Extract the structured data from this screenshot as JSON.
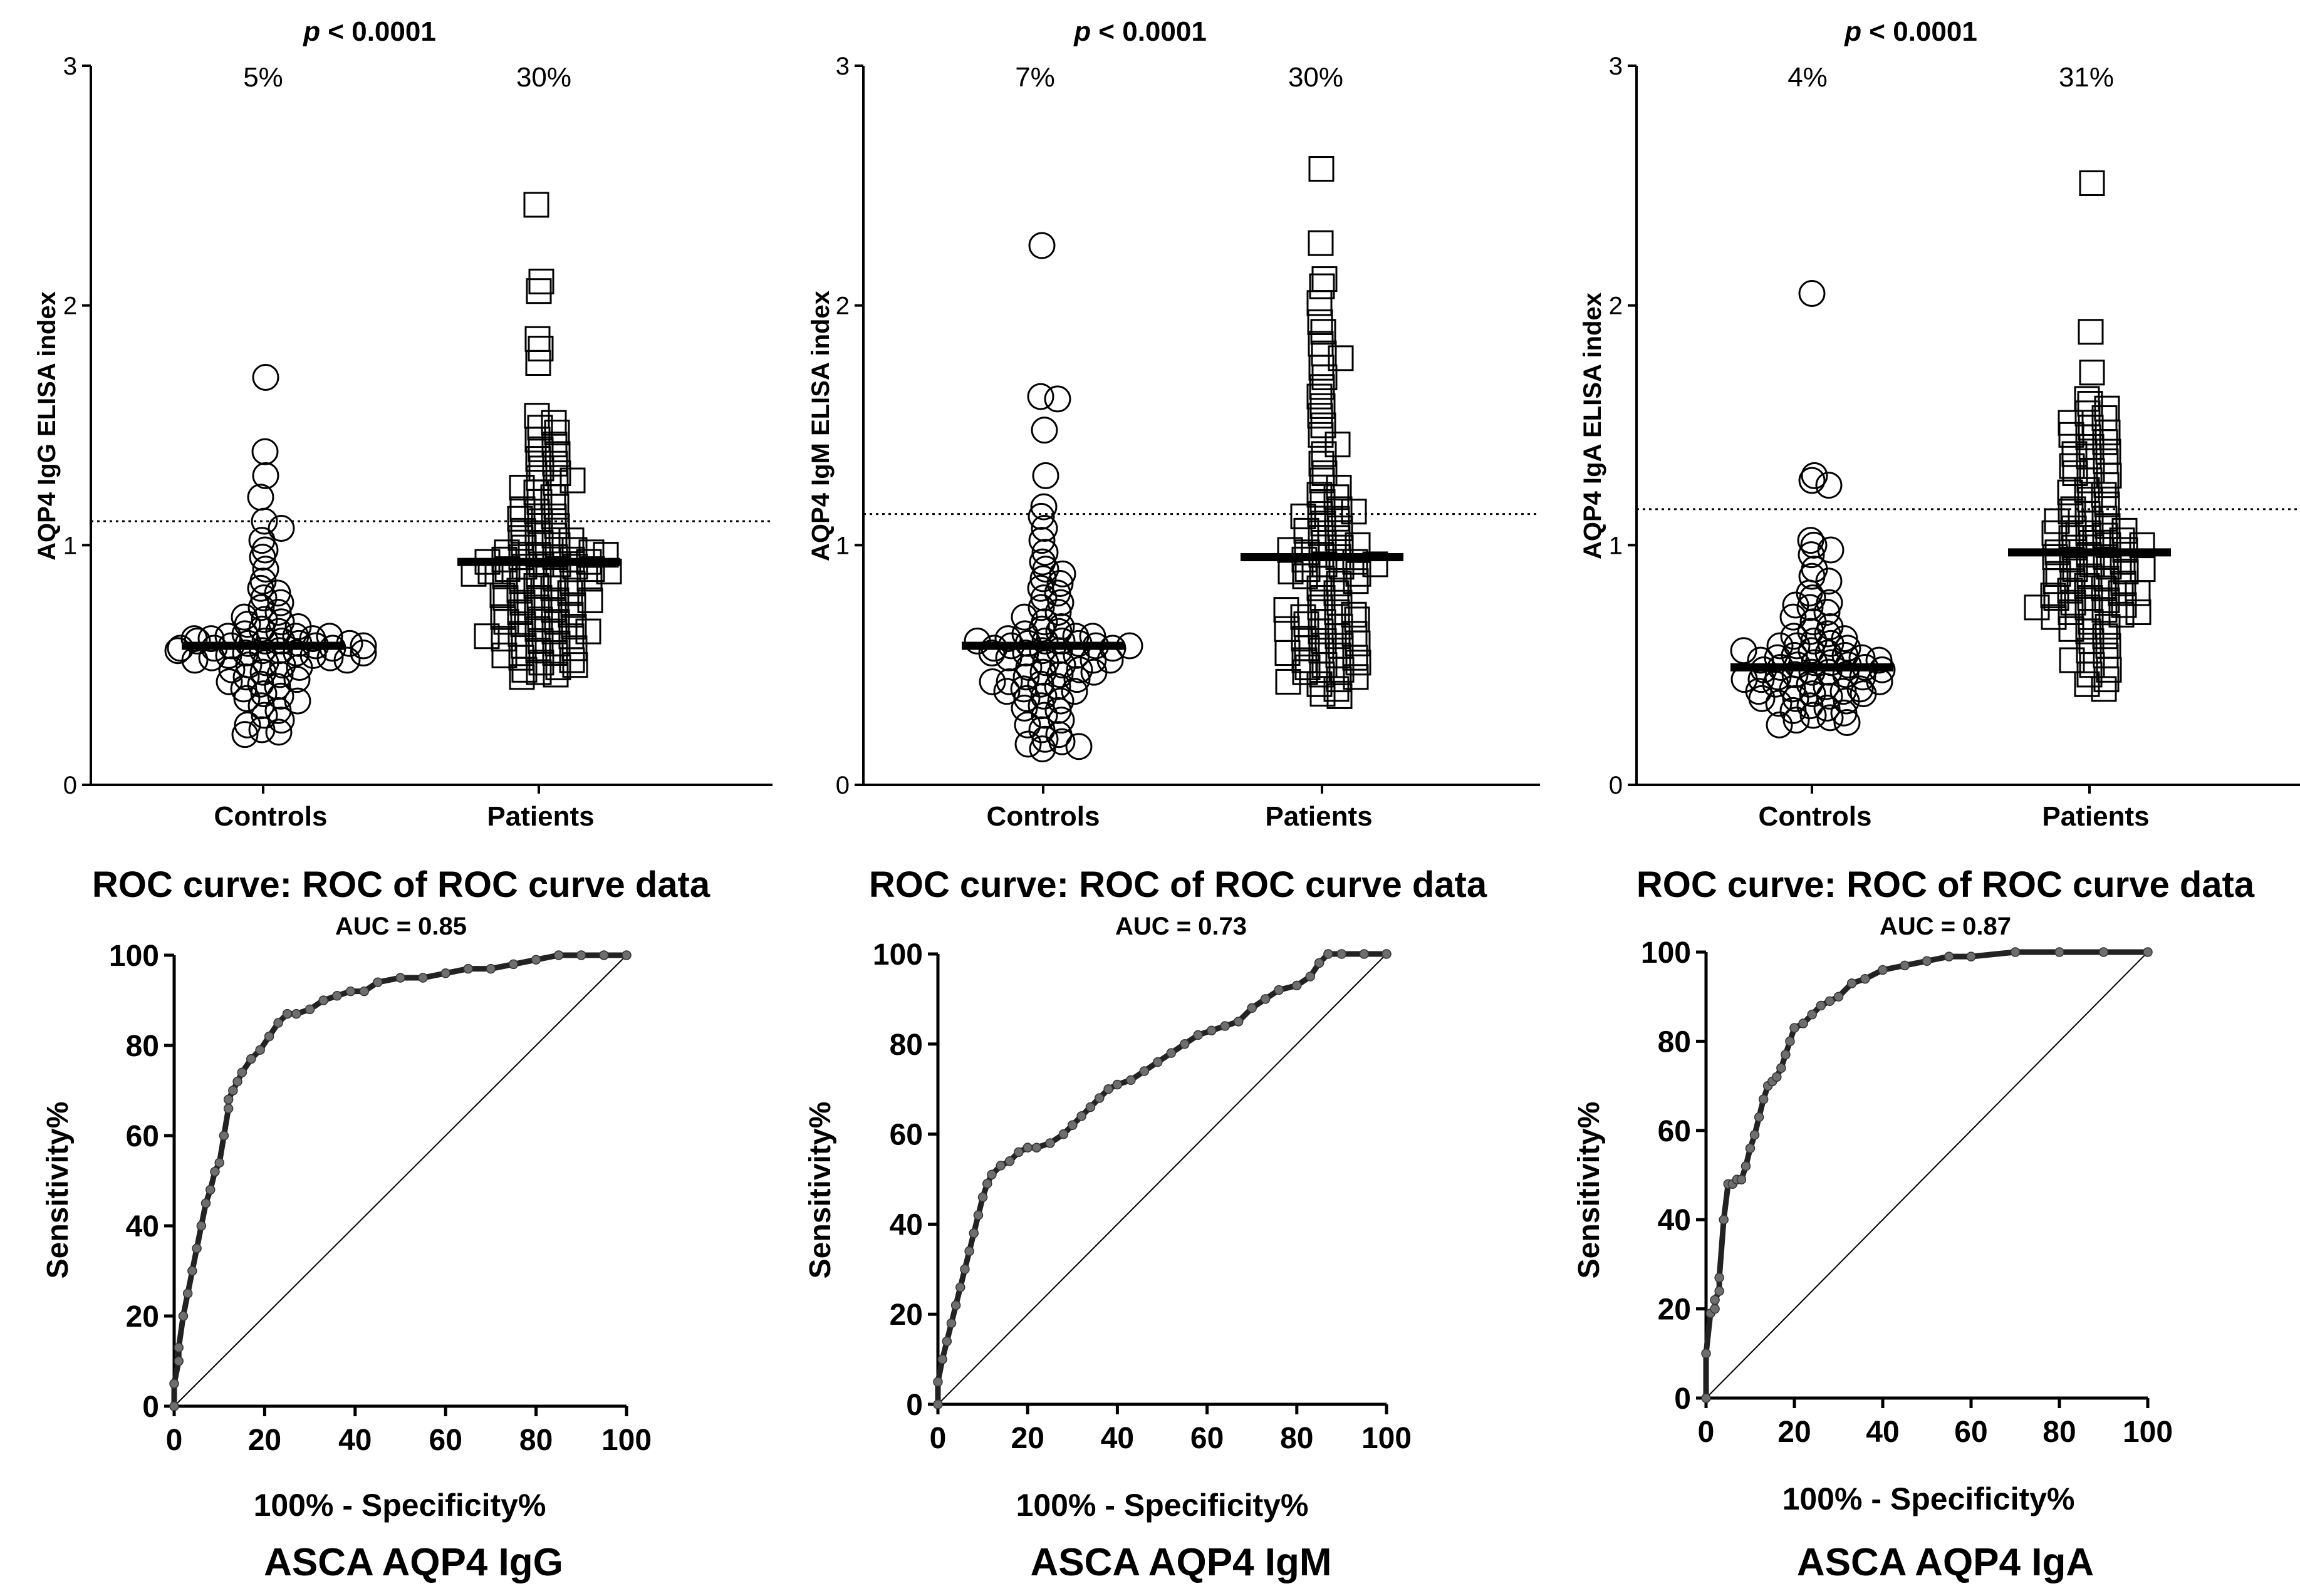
{
  "figure": {
    "colors": {
      "ink": "#000000",
      "roc_marker": "#6e6e6e",
      "background": "#ffffff"
    }
  },
  "chart_data": [
    {
      "type": "scatter",
      "id": "dot-igg",
      "title": "p < 0.0001",
      "title_italic_part": "p",
      "title_rest": " < 0.0001",
      "ylabel": "AQP4 IgG ELISA index",
      "ylim": [
        0,
        3
      ],
      "yticks": [
        0,
        1,
        2,
        3
      ],
      "categories": [
        "Controls",
        "Patients"
      ],
      "percent_labels": [
        "5%",
        "30%"
      ],
      "cutoff": 1.1,
      "medians": [
        0.58,
        0.93
      ],
      "series": [
        {
          "name": "Controls",
          "marker": "circle",
          "values": [
            1.7,
            1.39,
            1.29,
            1.2,
            1.1,
            1.07,
            1.02,
            0.98,
            0.95,
            0.9,
            0.85,
            0.82,
            0.8,
            0.78,
            0.76,
            0.74,
            0.72,
            0.7,
            0.69,
            0.68,
            0.67,
            0.66,
            0.65,
            0.64,
            0.63,
            0.62,
            0.62,
            0.61,
            0.61,
            0.6,
            0.6,
            0.59,
            0.59,
            0.58,
            0.58,
            0.57,
            0.57,
            0.56,
            0.56,
            0.55,
            0.55,
            0.54,
            0.54,
            0.53,
            0.53,
            0.52,
            0.52,
            0.51,
            0.5,
            0.5,
            0.49,
            0.48,
            0.47,
            0.46,
            0.45,
            0.44,
            0.43,
            0.42,
            0.41,
            0.4,
            0.38,
            0.37,
            0.36,
            0.35,
            0.33,
            0.31,
            0.29,
            0.27,
            0.25,
            0.23,
            0.22,
            0.21,
            0.62,
            0.6,
            0.59,
            0.57,
            0.56,
            0.58,
            0.61,
            0.55
          ]
        },
        {
          "name": "Patients",
          "marker": "square",
          "values": [
            2.42,
            2.1,
            2.06,
            1.86,
            1.82,
            1.76,
            1.54,
            1.51,
            1.49,
            1.47,
            1.44,
            1.42,
            1.4,
            1.38,
            1.36,
            1.34,
            1.32,
            1.3,
            1.28,
            1.26,
            1.24,
            1.22,
            1.2,
            1.18,
            1.16,
            1.14,
            1.12,
            1.1,
            1.08,
            1.06,
            1.05,
            1.04,
            1.03,
            1.02,
            1.01,
            1.0,
            0.99,
            0.98,
            0.97,
            0.96,
            0.95,
            0.95,
            0.94,
            0.94,
            0.93,
            0.93,
            0.92,
            0.92,
            0.91,
            0.91,
            0.9,
            0.9,
            0.89,
            0.89,
            0.88,
            0.87,
            0.86,
            0.85,
            0.84,
            0.83,
            0.82,
            0.81,
            0.8,
            0.79,
            0.78,
            0.77,
            0.76,
            0.75,
            0.74,
            0.73,
            0.72,
            0.71,
            0.7,
            0.69,
            0.68,
            0.67,
            0.66,
            0.65,
            0.64,
            0.63,
            0.62,
            0.61,
            0.6,
            0.59,
            0.58,
            0.57,
            0.56,
            0.55,
            0.53,
            0.51,
            0.49,
            0.47,
            0.46,
            0.45,
            0.48,
            0.5,
            0.52,
            0.54,
            1.27,
            1.15,
            1.11,
            0.97,
            0.96,
            0.87,
            0.86,
            0.78,
            0.77,
            0.68,
            0.64,
            0.62
          ]
        }
      ]
    },
    {
      "type": "scatter",
      "id": "dot-igm",
      "title": "p < 0.0001",
      "title_italic_part": "p",
      "title_rest": " < 0.0001",
      "ylabel": "AQP4 IgM ELISA index",
      "ylim": [
        0,
        3
      ],
      "yticks": [
        0,
        1,
        2,
        3
      ],
      "categories": [
        "Controls",
        "Patients"
      ],
      "percent_labels": [
        "7%",
        "30%"
      ],
      "cutoff": 1.13,
      "medians": [
        0.58,
        0.95
      ],
      "series": [
        {
          "name": "Controls",
          "marker": "circle",
          "values": [
            2.25,
            1.62,
            1.61,
            1.48,
            1.29,
            1.16,
            1.12,
            1.07,
            1.02,
            0.97,
            0.93,
            0.9,
            0.88,
            0.86,
            0.84,
            0.82,
            0.8,
            0.78,
            0.76,
            0.74,
            0.72,
            0.7,
            0.68,
            0.66,
            0.65,
            0.64,
            0.63,
            0.62,
            0.61,
            0.6,
            0.6,
            0.59,
            0.59,
            0.58,
            0.58,
            0.57,
            0.57,
            0.56,
            0.56,
            0.55,
            0.54,
            0.53,
            0.52,
            0.51,
            0.5,
            0.49,
            0.48,
            0.47,
            0.46,
            0.45,
            0.44,
            0.43,
            0.42,
            0.41,
            0.4,
            0.39,
            0.37,
            0.35,
            0.33,
            0.31,
            0.29,
            0.27,
            0.25,
            0.23,
            0.21,
            0.19,
            0.18,
            0.17,
            0.16,
            0.15,
            0.62,
            0.6,
            0.58,
            0.55,
            0.52,
            0.47,
            0.43,
            0.39,
            0.36,
            0.32
          ]
        },
        {
          "name": "Patients",
          "marker": "square",
          "values": [
            2.57,
            2.26,
            2.11,
            2.08,
            2.01,
            1.93,
            1.89,
            1.84,
            1.8,
            1.78,
            1.74,
            1.7,
            1.66,
            1.62,
            1.58,
            1.54,
            1.5,
            1.46,
            1.42,
            1.38,
            1.34,
            1.3,
            1.27,
            1.24,
            1.21,
            1.18,
            1.15,
            1.13,
            1.11,
            1.09,
            1.07,
            1.05,
            1.03,
            1.01,
            0.99,
            0.97,
            0.96,
            0.95,
            0.94,
            0.93,
            0.92,
            0.91,
            0.9,
            0.88,
            0.86,
            0.84,
            0.82,
            0.8,
            0.78,
            0.76,
            0.74,
            0.72,
            0.7,
            0.68,
            0.66,
            0.64,
            0.62,
            0.6,
            0.58,
            0.56,
            0.54,
            0.52,
            0.5,
            0.48,
            0.46,
            0.44,
            0.42,
            0.4,
            0.38,
            0.37,
            0.47,
            0.49,
            0.51,
            0.53,
            0.57,
            0.61,
            0.63,
            0.67,
            0.71,
            1.12,
            1.06,
            1.0,
            0.98,
            0.89,
            0.87,
            0.73,
            0.65,
            0.55,
            0.45,
            0.43,
            1.2,
            1.14,
            0.92,
            0.85,
            0.69,
            0.59
          ]
        }
      ]
    },
    {
      "type": "scatter",
      "id": "dot-iga",
      "title": "p < 0.0001",
      "title_italic_part": "p",
      "title_rest": " < 0.0001",
      "ylabel": "AQP4 IgA ELISA index",
      "ylim": [
        0,
        3
      ],
      "yticks": [
        0,
        1,
        2,
        3
      ],
      "categories": [
        "Controls",
        "Patients"
      ],
      "percent_labels": [
        "4%",
        "31%"
      ],
      "cutoff": 1.15,
      "medians": [
        0.49,
        0.97
      ],
      "series": [
        {
          "name": "Controls",
          "marker": "circle",
          "values": [
            2.05,
            1.29,
            1.27,
            1.25,
            1.02,
            1.0,
            0.98,
            0.96,
            0.9,
            0.87,
            0.85,
            0.8,
            0.78,
            0.76,
            0.75,
            0.74,
            0.72,
            0.7,
            0.68,
            0.66,
            0.64,
            0.63,
            0.62,
            0.61,
            0.6,
            0.59,
            0.58,
            0.57,
            0.56,
            0.55,
            0.54,
            0.54,
            0.53,
            0.53,
            0.52,
            0.52,
            0.51,
            0.51,
            0.5,
            0.5,
            0.49,
            0.49,
            0.48,
            0.48,
            0.47,
            0.47,
            0.46,
            0.46,
            0.45,
            0.45,
            0.44,
            0.43,
            0.42,
            0.41,
            0.4,
            0.39,
            0.38,
            0.37,
            0.36,
            0.35,
            0.34,
            0.33,
            0.32,
            0.31,
            0.3,
            0.29,
            0.28,
            0.27,
            0.26,
            0.25,
            0.42,
            0.4,
            0.38,
            0.36,
            0.56,
            0.58,
            0.44,
            0.39
          ]
        },
        {
          "name": "Patients",
          "marker": "square",
          "values": [
            2.51,
            1.89,
            1.72,
            1.61,
            1.59,
            1.57,
            1.55,
            1.53,
            1.51,
            1.49,
            1.47,
            1.45,
            1.43,
            1.41,
            1.39,
            1.37,
            1.35,
            1.33,
            1.31,
            1.29,
            1.27,
            1.25,
            1.23,
            1.21,
            1.19,
            1.17,
            1.15,
            1.13,
            1.11,
            1.09,
            1.08,
            1.07,
            1.06,
            1.05,
            1.04,
            1.03,
            1.02,
            1.01,
            1.0,
            0.99,
            0.98,
            0.97,
            0.96,
            0.95,
            0.94,
            0.93,
            0.92,
            0.91,
            0.9,
            0.89,
            0.88,
            0.87,
            0.86,
            0.85,
            0.84,
            0.83,
            0.82,
            0.81,
            0.8,
            0.79,
            0.78,
            0.77,
            0.76,
            0.75,
            0.74,
            0.73,
            0.72,
            0.71,
            0.7,
            0.68,
            0.66,
            0.64,
            0.62,
            0.6,
            0.58,
            0.56,
            0.54,
            0.52,
            0.5,
            0.48,
            0.46,
            0.44,
            0.42,
            0.4,
            1.1,
            1.05,
            0.95,
            0.85,
            0.78,
            0.72,
            0.65,
            1.46,
            1.38,
            1.3,
            1.22,
            1.14,
            0.74,
            0.8,
            0.9,
            1.0
          ]
        }
      ]
    },
    {
      "type": "line",
      "id": "roc-igg",
      "title": "ROC curve: ROC of ROC curve data",
      "subtitle": "AUC = 0.85",
      "xlabel": "100% - Specificity%",
      "ylabel": "Sensitivity%",
      "panel_label": "ASCA AQP4 IgG",
      "xlim": [
        0,
        100
      ],
      "ylim": [
        0,
        100
      ],
      "xticks": [
        0,
        20,
        40,
        60,
        80,
        100
      ],
      "yticks": [
        0,
        20,
        40,
        60,
        80,
        100
      ],
      "reference_line": [
        [
          0,
          0
        ],
        [
          100,
          100
        ]
      ],
      "x": [
        0,
        0,
        1,
        1,
        2,
        3,
        4,
        5,
        6,
        7,
        8,
        9,
        10,
        11,
        12,
        12,
        13,
        14,
        15,
        17,
        19,
        21,
        23,
        25,
        27,
        30,
        33,
        36,
        39,
        42,
        45,
        50,
        55,
        60,
        65,
        70,
        75,
        80,
        85,
        90,
        95,
        100
      ],
      "y": [
        0,
        5,
        10,
        13,
        20,
        25,
        30,
        35,
        40,
        45,
        48,
        52,
        54,
        60,
        66,
        68,
        70,
        72,
        74,
        77,
        79,
        82,
        85,
        87,
        87,
        88,
        90,
        91,
        92,
        92,
        94,
        95,
        95,
        96,
        97,
        97,
        98,
        99,
        100,
        100,
        100,
        100
      ]
    },
    {
      "type": "line",
      "id": "roc-igm",
      "title": "ROC curve: ROC of ROC curve data",
      "subtitle": "AUC = 0.73",
      "xlabel": "100% - Specificity%",
      "ylabel": "Sensitivity%",
      "panel_label": "ASCA AQP4 IgM",
      "xlim": [
        0,
        100
      ],
      "ylim": [
        0,
        100
      ],
      "xticks": [
        0,
        20,
        40,
        60,
        80,
        100
      ],
      "yticks": [
        0,
        20,
        40,
        60,
        80,
        100
      ],
      "reference_line": [
        [
          0,
          0
        ],
        [
          100,
          100
        ]
      ],
      "x": [
        0,
        0,
        1,
        2,
        3,
        4,
        5,
        6,
        7,
        8,
        9,
        10,
        11,
        12,
        14,
        16,
        18,
        20,
        22,
        25,
        28,
        30,
        32,
        34,
        36,
        38,
        40,
        43,
        46,
        49,
        52,
        55,
        58,
        61,
        64,
        67,
        70,
        73,
        76,
        80,
        83,
        85,
        87,
        90,
        95,
        100
      ],
      "y": [
        0,
        5,
        10,
        14,
        18,
        22,
        26,
        30,
        34,
        38,
        42,
        46,
        49,
        51,
        53,
        54,
        56,
        57,
        57,
        58,
        60,
        62,
        64,
        66,
        68,
        70,
        71,
        72,
        74,
        76,
        78,
        80,
        82,
        83,
        84,
        85,
        88,
        90,
        92,
        93,
        95,
        98,
        100,
        100,
        100,
        100
      ]
    },
    {
      "type": "line",
      "id": "roc-iga",
      "title": "ROC curve: ROC of ROC curve data",
      "subtitle": "AUC = 0.87",
      "xlabel": "100% - Specificity%",
      "ylabel": "Sensitivity%",
      "panel_label": "ASCA AQP4 IgA",
      "xlim": [
        0,
        100
      ],
      "ylim": [
        0,
        100
      ],
      "xticks": [
        0,
        20,
        40,
        60,
        80,
        100
      ],
      "yticks": [
        0,
        20,
        40,
        60,
        80,
        100
      ],
      "reference_line": [
        [
          0,
          0
        ],
        [
          100,
          100
        ]
      ],
      "x": [
        0,
        0,
        1,
        2,
        2,
        3,
        3,
        4,
        5,
        6,
        7,
        8,
        9,
        10,
        11,
        12,
        13,
        14,
        15,
        16,
        17,
        18,
        19,
        20,
        22,
        24,
        26,
        28,
        30,
        33,
        36,
        40,
        45,
        50,
        55,
        60,
        70,
        80,
        90,
        100
      ],
      "y": [
        0,
        10,
        19,
        20,
        22,
        24,
        27,
        40,
        48,
        48,
        49,
        49,
        52,
        56,
        59,
        63,
        67,
        70,
        71,
        72,
        74,
        77,
        80,
        83,
        84,
        86,
        88,
        89,
        90,
        93,
        94,
        96,
        97,
        98,
        99,
        99,
        100,
        100,
        100,
        100
      ]
    }
  ]
}
